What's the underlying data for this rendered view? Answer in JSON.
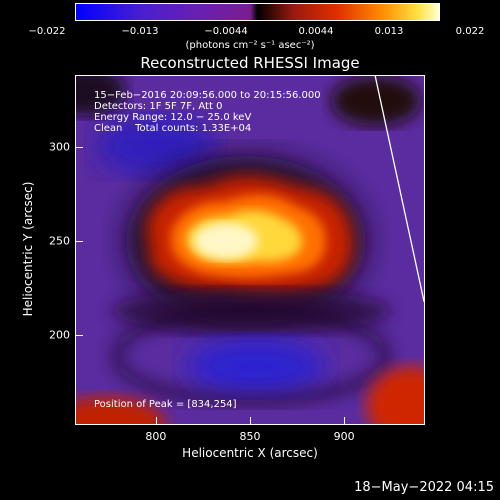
{
  "colorbar": {
    "ticks": [
      "−0.022",
      "−0.013",
      "−0.0044",
      "0.0044",
      "0.013",
      "0.022"
    ],
    "units": "(photons cm⁻² s⁻¹ asec⁻²)"
  },
  "chart_data": {
    "type": "heatmap",
    "title": "Reconstructed RHESSI Image",
    "xlabel": "Heliocentric X (arcsec)",
    "ylabel": "Heliocentric Y (arcsec)",
    "xlim": [
      757,
      943
    ],
    "ylim": [
      152,
      338
    ],
    "x_ticks": [
      800,
      850,
      900
    ],
    "y_ticks": [
      200,
      250,
      300
    ],
    "x_tick_labels": [
      "800",
      "850",
      "900"
    ],
    "y_tick_labels": [
      "200",
      "250",
      "300"
    ],
    "color_range": [
      -0.022,
      0.022
    ],
    "peak": [
      834,
      254
    ],
    "limb_line": [
      [
        916,
        338
      ],
      [
        942,
        218
      ]
    ]
  },
  "annotations": {
    "time": "15−Feb−2016 20:09:56.000 to 20:15:56.000",
    "detectors": "Detectors: 1F 5F 7F, Att 0",
    "energy": "Energy Range: 12.0 − 25.0 keV",
    "clean": "Clean    Total counts: 1.33E+04",
    "peak_text": "Position of Peak = [834,254]"
  },
  "footer": {
    "date": "18−May−2022 04:15"
  }
}
